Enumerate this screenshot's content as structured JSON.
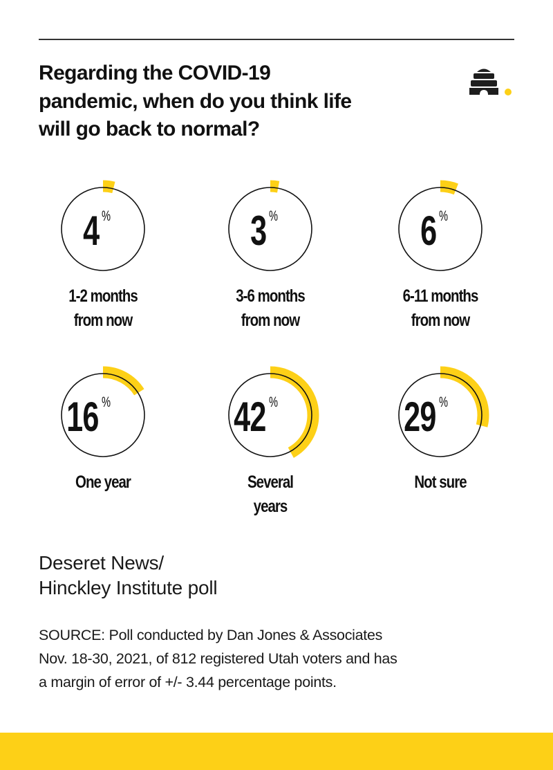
{
  "header": {
    "title_lines": [
      "Regarding the COVID-19",
      "pandemic, when do you think life",
      "will go back to normal?"
    ],
    "logo_icon": "beehive-icon"
  },
  "colors": {
    "accent": "#FDD017",
    "text": "#111111",
    "rule": "#333333",
    "circle_stroke": "#111111"
  },
  "chart_data": {
    "type": "pie",
    "title": "Regarding the COVID-19 pandemic, when do you think life will go back to normal?",
    "categories": [
      "1-2 months from now",
      "3-6 months from now",
      "6-11 months from now",
      "One year",
      "Several years",
      "Not sure"
    ],
    "values": [
      4,
      3,
      6,
      16,
      42,
      29
    ],
    "unit": "%",
    "style": "individual progress rings per category",
    "legend": "none",
    "grid": false
  },
  "items": [
    {
      "value": "4",
      "unit": "%",
      "label_lines": [
        "1-2 months",
        "from now"
      ]
    },
    {
      "value": "3",
      "unit": "%",
      "label_lines": [
        "3-6 months",
        "from now"
      ]
    },
    {
      "value": "6",
      "unit": "%",
      "label_lines": [
        "6-11 months",
        "from now"
      ]
    },
    {
      "value": "16",
      "unit": "%",
      "label_lines": [
        "One year"
      ]
    },
    {
      "value": "42",
      "unit": "%",
      "label_lines": [
        "Several",
        "years"
      ]
    },
    {
      "value": "29",
      "unit": "%",
      "label_lines": [
        "Not sure"
      ]
    }
  ],
  "credit": {
    "lines": [
      "Deseret News/",
      "Hinckley Institute poll"
    ]
  },
  "source": {
    "lines": [
      "SOURCE: Poll conducted by Dan Jones & Associates",
      "Nov. 18-30, 2021, of 812 registered Utah voters and has",
      "a margin of error of +/- 3.44 percentage points."
    ]
  }
}
